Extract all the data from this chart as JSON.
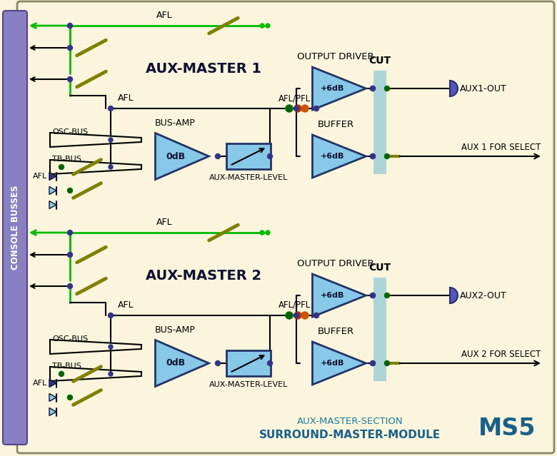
{
  "bg_color": "#FAF5DC",
  "border_color": "#AAAAAA",
  "title_bottom1": "AUX-MASTER-SECTION",
  "title_bottom2": "SURROUND-MASTER-MODULE",
  "title_ms5": "MS5",
  "console_busses_label": "CONSOLE BUSSES",
  "left_bar_color": "#8880C0",
  "amp_color": "#88C8E8",
  "green_line_color": "#00BB00",
  "olive_color": "#808000",
  "node_color_dark": "#333388",
  "node_green": "#006600",
  "node_orange": "#CC5500",
  "cut_bar_color": "#A0D0D8",
  "connector_color": "#5555BB",
  "black": "#000000",
  "text_blue": "#1E7A9F",
  "text_blue2": "#1A5F8A"
}
